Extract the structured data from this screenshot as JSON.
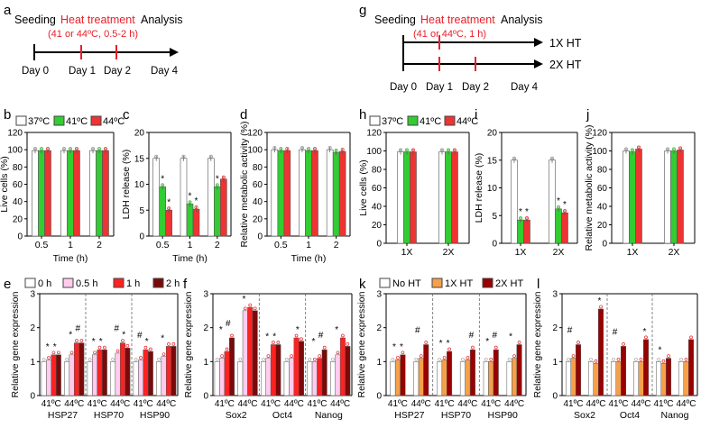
{
  "colors": {
    "c37": "#ffffff",
    "c41": "#33cc33",
    "c44": "#ee3333",
    "h0": "#ffffff",
    "h05": "#ffccee",
    "h1": "#ff2222",
    "h2": "#7a0a0a",
    "noht": "#ffffff",
    "ht1": "#f5a04a",
    "ht2": "#990000",
    "red": "#e8202a",
    "axis": "#000000"
  },
  "timeline_a": {
    "panel": "a",
    "seeding": "Seeding",
    "heat": "Heat treatment",
    "analysis": "Analysis",
    "condition": "(41 or 44ºC, 0.5-2 h)",
    "days": [
      "Day 0",
      "Day 1",
      "Day 2",
      "Day 4"
    ]
  },
  "timeline_g": {
    "panel": "g",
    "seeding": "Seeding",
    "heat": "Heat treatment",
    "analysis": "Analysis",
    "condition": "(41 or 44ºC, 1 h)",
    "rows": [
      "1X HT",
      "2X HT"
    ],
    "days": [
      "Day 0",
      "Day 1",
      "Day 2",
      "Day 4"
    ]
  },
  "legends": {
    "temp": [
      "37ºC",
      "41ºC",
      "44ºC"
    ],
    "time": [
      "0 h",
      "0.5 h",
      "1 h",
      "2 h"
    ],
    "ht": [
      "No HT",
      "1X HT",
      "2X HT"
    ]
  },
  "panel_letters": [
    "b",
    "c",
    "d",
    "e",
    "f",
    "h",
    "i",
    "j",
    "k",
    "l"
  ],
  "chart_data": [
    {
      "panel": "b",
      "type": "bar",
      "ylabel": "Live cells (%)",
      "xlabel": "Time (h)",
      "categories": [
        "0.5",
        "1",
        "2"
      ],
      "ylim": [
        0,
        120
      ],
      "yticks": [
        0,
        20,
        40,
        60,
        80,
        100,
        120
      ],
      "series": [
        {
          "name": "37ºC",
          "values": [
            99,
            99,
            99
          ]
        },
        {
          "name": "41ºC",
          "values": [
            99,
            99,
            99
          ]
        },
        {
          "name": "44ºC",
          "values": [
            99,
            99,
            99
          ]
        }
      ],
      "annotations": []
    },
    {
      "panel": "c",
      "type": "bar",
      "ylabel": "LDH release (%)",
      "xlabel": "Time (h)",
      "categories": [
        "0.5",
        "1",
        "2"
      ],
      "ylim": [
        0,
        20
      ],
      "yticks": [
        0,
        5,
        10,
        15,
        20
      ],
      "series": [
        {
          "name": "37ºC",
          "values": [
            15,
            15,
            15
          ]
        },
        {
          "name": "41ºC",
          "values": [
            9.5,
            6.2,
            9.5
          ]
        },
        {
          "name": "44ºC",
          "values": [
            5,
            5.2,
            11
          ]
        }
      ],
      "annotations": [
        "*",
        "*",
        "*",
        "*",
        "*"
      ]
    },
    {
      "panel": "d",
      "type": "bar",
      "ylabel": "Relative metabolic activity (%)",
      "xlabel": "Time (h)",
      "categories": [
        "0.5",
        "1",
        "2"
      ],
      "ylim": [
        0,
        120
      ],
      "yticks": [
        0,
        20,
        40,
        60,
        80,
        100,
        120
      ],
      "series": [
        {
          "name": "37ºC",
          "values": [
            100,
            100,
            100
          ]
        },
        {
          "name": "41ºC",
          "values": [
            99,
            99,
            97
          ]
        },
        {
          "name": "44ºC",
          "values": [
            99,
            99,
            98
          ]
        }
      ],
      "annotations": []
    },
    {
      "panel": "h",
      "type": "bar",
      "ylabel": "Live cells (%)",
      "xlabel": "",
      "categories": [
        "1X",
        "2X"
      ],
      "ylim": [
        0,
        120
      ],
      "yticks": [
        0,
        20,
        40,
        60,
        80,
        100,
        120
      ],
      "series": [
        {
          "name": "37ºC",
          "values": [
            99,
            99
          ]
        },
        {
          "name": "41ºC",
          "values": [
            99,
            99
          ]
        },
        {
          "name": "44ºC",
          "values": [
            99,
            99
          ]
        }
      ],
      "annotations": []
    },
    {
      "panel": "i",
      "type": "bar",
      "ylabel": "LDH release (%)",
      "xlabel": "",
      "categories": [
        "1X",
        "2X"
      ],
      "ylim": [
        0,
        20
      ],
      "yticks": [
        0,
        5,
        10,
        15,
        20
      ],
      "series": [
        {
          "name": "37ºC",
          "values": [
            15,
            15
          ]
        },
        {
          "name": "41ºC",
          "values": [
            4.2,
            6.2
          ]
        },
        {
          "name": "44ºC",
          "values": [
            4.2,
            5.5
          ]
        }
      ],
      "annotations": [
        "*",
        "*",
        "*",
        "*"
      ]
    },
    {
      "panel": "j",
      "type": "bar",
      "ylabel": "Relative metabolic activity (%)",
      "xlabel": "",
      "categories": [
        "1X",
        "2X"
      ],
      "ylim": [
        0,
        120
      ],
      "yticks": [
        0,
        20,
        40,
        60,
        80,
        100,
        120
      ],
      "series": [
        {
          "name": "37ºC",
          "values": [
            100,
            100
          ]
        },
        {
          "name": "41ºC",
          "values": [
            99,
            100
          ]
        },
        {
          "name": "44ºC",
          "values": [
            102,
            101
          ]
        }
      ],
      "annotations": []
    },
    {
      "panel": "e",
      "type": "bar",
      "ylabel": "Relative gene expression",
      "xlabel": "",
      "categories": [
        "41ºC",
        "44ºC",
        "41ºC",
        "44ºC",
        "41ºC",
        "44ºC"
      ],
      "groups": [
        "HSP27",
        "HSP70",
        "HSP90"
      ],
      "ylim": [
        0,
        3
      ],
      "yticks": [
        0,
        1,
        2,
        3
      ],
      "series": [
        {
          "name": "0 h",
          "values": [
            1,
            1,
            1,
            1,
            1,
            1
          ]
        },
        {
          "name": "0.5 h",
          "values": [
            1.05,
            1.2,
            1.2,
            1.25,
            1.05,
            1.15
          ]
        },
        {
          "name": "1 h",
          "values": [
            1.2,
            1.55,
            1.35,
            1.55,
            1.35,
            1.45
          ]
        },
        {
          "name": "2 h",
          "values": [
            1.2,
            1.55,
            1.35,
            1.4,
            1.3,
            1.45
          ]
        }
      ],
      "annotations": [
        "*",
        "*",
        "*",
        "#",
        "*",
        "*",
        "#",
        "*",
        "#",
        "*",
        "*"
      ]
    },
    {
      "panel": "f",
      "type": "bar",
      "ylabel": "Relative gene expression",
      "xlabel": "",
      "categories": [
        "41ºC",
        "44ºC",
        "41ºC",
        "44ºC",
        "41ºC",
        "44ºC"
      ],
      "groups": [
        "Sox2",
        "Oct4",
        "Nanog"
      ],
      "ylim": [
        0,
        3
      ],
      "yticks": [
        0,
        1,
        2,
        3
      ],
      "series": [
        {
          "name": "0 h",
          "values": [
            1,
            1,
            1,
            1,
            1,
            1
          ]
        },
        {
          "name": "0.5 h",
          "values": [
            1.1,
            2.5,
            1.1,
            1.1,
            1.0,
            1.2
          ]
        },
        {
          "name": "1 h",
          "values": [
            1.3,
            2.6,
            1.5,
            1.7,
            1.1,
            1.7
          ]
        },
        {
          "name": "2 h",
          "values": [
            1.7,
            2.5,
            1.5,
            1.6,
            1.35,
            1.45
          ]
        }
      ],
      "annotations": [
        "*",
        "#",
        "*",
        "*",
        "*",
        "*",
        "*",
        "#",
        "*"
      ]
    },
    {
      "panel": "k",
      "type": "bar",
      "ylabel": "Relative gene expression",
      "xlabel": "",
      "categories": [
        "41ºC",
        "44ºC",
        "41ºC",
        "44ºC",
        "41ºC",
        "44ºC"
      ],
      "groups": [
        "HSP27",
        "HSP70",
        "HSP90"
      ],
      "ylim": [
        0,
        3
      ],
      "yticks": [
        0,
        1,
        2,
        3
      ],
      "series": [
        {
          "name": "No HT",
          "values": [
            1,
            1,
            1,
            1,
            1,
            1
          ]
        },
        {
          "name": "1X HT",
          "values": [
            1.05,
            1.1,
            1.05,
            1.05,
            1.0,
            1.1
          ]
        },
        {
          "name": "2X HT",
          "values": [
            1.2,
            1.5,
            1.3,
            1.35,
            1.35,
            1.5
          ]
        }
      ],
      "annotations": [
        "*",
        "*",
        "#",
        "*",
        "*",
        "#",
        "*",
        "#",
        "*"
      ]
    },
    {
      "panel": "l",
      "type": "bar",
      "ylabel": "Relative gene expression",
      "xlabel": "",
      "categories": [
        "41ºC",
        "44ºC",
        "41ºC",
        "44ºC",
        "41ºC",
        "44ºC"
      ],
      "groups": [
        "Sox2",
        "Oct4",
        "Nanog"
      ],
      "ylim": [
        0,
        3
      ],
      "yticks": [
        0,
        1,
        2,
        3
      ],
      "series": [
        {
          "name": "No HT",
          "values": [
            1,
            1,
            1,
            1,
            1,
            1
          ]
        },
        {
          "name": "1X HT",
          "values": [
            1.1,
            0.95,
            1.0,
            1.0,
            0.95,
            1.0
          ]
        },
        {
          "name": "2X HT",
          "values": [
            1.5,
            2.55,
            1.45,
            1.65,
            1.1,
            1.65
          ]
        }
      ],
      "annotations": [
        "#",
        "*",
        "#",
        "*",
        "*"
      ]
    }
  ]
}
